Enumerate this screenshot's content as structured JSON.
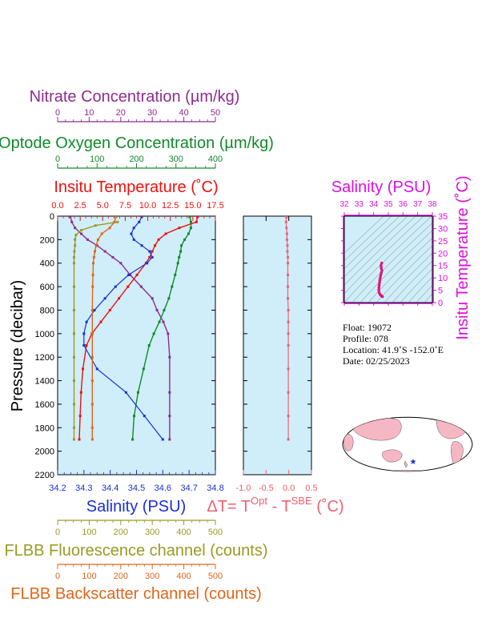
{
  "colors": {
    "nitrate": "#8e2c91",
    "oxygen": "#108a2a",
    "temperature": "#ee1111",
    "salinity": "#1a2fd6",
    "fluorescence": "#9a9a24",
    "backscatter": "#e0661a",
    "delta": "#f06070",
    "ts_axis": "#dd10dd",
    "plot_bg": "#cfeef9"
  },
  "labels": {
    "nitrate": "Nitrate Concentration (µm/kg)",
    "oxygen": "Optode Oxygen Concentration (µm/kg)",
    "temperature": "Insitu Temperature (˚C)",
    "salinity": "Salinity (PSU)",
    "delta_t_main": "ΔT= T",
    "delta_t_sup1": "Opt",
    "delta_t_mid": " - T",
    "delta_t_sup2": "SBE",
    "delta_t_end": " (˚C)",
    "pressure": "Pressure (decibar)",
    "fluorescence": "FLBB Fluorescence channel (counts)",
    "backscatter": "FLBB Backscatter channel (counts)",
    "ts_salinity": "Salinity (PSU)",
    "ts_temperature": "Insitu Temperature (˚C)"
  },
  "float_info": {
    "float": "Float:  19072",
    "profile": "Profile:  078",
    "location": "Location:  41.9˚S  -152.0˚E",
    "date": "Date:  02/25/2023"
  },
  "chart_data": [
    {
      "type": "line",
      "name": "profile",
      "y_axis": {
        "ylim": [
          2200,
          0
        ],
        "ticks": [
          0,
          200,
          400,
          600,
          800,
          1000,
          1200,
          1400,
          1600,
          1800,
          2000,
          2200
        ]
      },
      "axes": {
        "salinity": {
          "range": [
            34.2,
            34.8
          ],
          "ticks": [
            "34.2",
            "34.3",
            "34.4",
            "34.5",
            "34.6",
            "34.7",
            "34.8"
          ]
        },
        "temperature": {
          "range": [
            0,
            17.5
          ],
          "ticks": [
            "0.0",
            "2.5",
            "5.0",
            "7.5",
            "10.0",
            "12.5",
            "15.0",
            "17.5"
          ]
        },
        "oxygen": {
          "range": [
            0,
            400
          ],
          "ticks": [
            "0",
            "100",
            "200",
            "300",
            "400"
          ]
        },
        "nitrate": {
          "range": [
            0,
            50
          ],
          "ticks": [
            "0",
            "10",
            "20",
            "30",
            "40",
            "50"
          ]
        },
        "fluorescence": {
          "range": [
            0,
            500
          ],
          "ticks": [
            "0",
            "100",
            "200",
            "300",
            "400",
            "500"
          ]
        },
        "backscatter": {
          "range": [
            0,
            500
          ],
          "ticks": [
            "0",
            "100",
            "200",
            "300",
            "400",
            "500"
          ]
        }
      },
      "series": [
        {
          "key": "nitrate",
          "axis": "nitrate",
          "markers": true,
          "x": [
            4,
            4.5,
            5.5,
            7.5,
            9.5,
            12.5,
            15,
            17.5,
            20,
            23,
            26.5,
            30,
            31.5,
            33.5,
            35,
            35.5,
            35.5,
            35.5,
            35.5
          ],
          "y": [
            5,
            50,
            100,
            150,
            200,
            250,
            300,
            350,
            400,
            500,
            600,
            700,
            800,
            900,
            1000,
            1200,
            1500,
            1700,
            1900
          ]
        },
        {
          "key": "oxygen",
          "axis": "oxygen",
          "markers": true,
          "x": [
            335,
            338,
            338,
            332,
            322,
            314,
            312,
            308,
            305,
            298,
            290,
            282,
            270,
            258,
            244,
            232,
            218,
            204,
            194,
            190
          ],
          "y": [
            5,
            50,
            100,
            150,
            200,
            250,
            300,
            350,
            400,
            500,
            600,
            700,
            800,
            900,
            1000,
            1100,
            1300,
            1500,
            1700,
            1900
          ]
        },
        {
          "key": "temperature",
          "axis": "temperature",
          "markers": true,
          "x": [
            15.5,
            15.4,
            13.5,
            12,
            11.2,
            10.8,
            10.5,
            10.2,
            9.8,
            8.8,
            7.8,
            6.8,
            5.8,
            4.8,
            3.8,
            3.2,
            2.8,
            2.6,
            2.5,
            2.4
          ],
          "y": [
            5,
            50,
            100,
            150,
            200,
            250,
            300,
            350,
            400,
            500,
            600,
            700,
            800,
            900,
            1000,
            1100,
            1300,
            1500,
            1700,
            1900
          ]
        },
        {
          "key": "salinity",
          "axis": "salinity",
          "markers": true,
          "x": [
            34.52,
            34.51,
            34.49,
            34.48,
            34.49,
            34.52,
            34.55,
            34.56,
            34.54,
            34.47,
            34.42,
            34.38,
            34.34,
            34.31,
            34.3,
            34.3,
            34.35,
            34.46,
            34.53,
            34.6
          ],
          "y": [
            5,
            50,
            100,
            150,
            200,
            250,
            300,
            350,
            400,
            500,
            600,
            700,
            800,
            900,
            1000,
            1100,
            1300,
            1500,
            1700,
            1900
          ]
        },
        {
          "key": "fluorescence",
          "axis": "fluorescence",
          "markers": true,
          "x": [
            190,
            120,
            75,
            58,
            55,
            55,
            53,
            52,
            52,
            52,
            52,
            52,
            52,
            52,
            52,
            52,
            52
          ],
          "y": [
            50,
            80,
            120,
            160,
            200,
            250,
            300,
            350,
            400,
            600,
            800,
            1000,
            1200,
            1400,
            1600,
            1800,
            1900
          ]
        },
        {
          "key": "backscatter",
          "axis": "backscatter",
          "markers": true,
          "x": [
            185,
            180,
            165,
            140,
            128,
            122,
            118,
            115,
            113,
            112,
            111,
            110,
            110,
            110,
            110,
            110,
            110,
            110
          ],
          "y": [
            5,
            50,
            100,
            150,
            200,
            250,
            300,
            350,
            400,
            500,
            600,
            800,
            1000,
            1200,
            1400,
            1600,
            1800,
            1900
          ]
        }
      ]
    },
    {
      "type": "line",
      "name": "delta_t",
      "xlim": [
        -1.0,
        0.5
      ],
      "x_ticks": [
        "-1.0",
        "-0.5",
        "0.0",
        "0.5"
      ],
      "ylim": [
        2200,
        0
      ],
      "series": [
        {
          "key": "delta",
          "markers": true,
          "x": [
            -0.05,
            -0.06,
            -0.05,
            -0.04,
            -0.04,
            -0.03,
            -0.03,
            -0.02,
            -0.02,
            -0.02,
            -0.02,
            -0.02,
            -0.01,
            -0.01,
            -0.01,
            -0.01,
            -0.01,
            -0.01,
            -0.01,
            -0.01
          ],
          "y": [
            10,
            50,
            100,
            150,
            200,
            250,
            300,
            350,
            400,
            500,
            600,
            700,
            800,
            900,
            1000,
            1100,
            1300,
            1500,
            1700,
            1900
          ]
        }
      ]
    },
    {
      "type": "scatter",
      "name": "ts_diagram",
      "xlim": [
        32,
        38
      ],
      "ylim": [
        0,
        35
      ],
      "x_ticks": [
        "32",
        "33",
        "34",
        "35",
        "36",
        "37",
        "38"
      ],
      "y_ticks": [
        "0",
        "5",
        "10",
        "15",
        "20",
        "25",
        "30",
        "35"
      ],
      "points": [
        {
          "x": 34.55,
          "y": 16.0
        },
        {
          "x": 34.5,
          "y": 15.0
        },
        {
          "x": 34.52,
          "y": 14.0
        },
        {
          "x": 34.56,
          "y": 13.0
        },
        {
          "x": 34.52,
          "y": 12.0
        },
        {
          "x": 34.48,
          "y": 11.0
        },
        {
          "x": 34.45,
          "y": 10.0
        },
        {
          "x": 34.42,
          "y": 9.0
        },
        {
          "x": 34.4,
          "y": 8.0
        },
        {
          "x": 34.38,
          "y": 7.0
        },
        {
          "x": 34.36,
          "y": 6.0
        },
        {
          "x": 34.35,
          "y": 5.0
        },
        {
          "x": 34.38,
          "y": 4.0
        },
        {
          "x": 34.45,
          "y": 3.2
        },
        {
          "x": 34.52,
          "y": 2.8
        },
        {
          "x": 34.58,
          "y": 2.5
        },
        {
          "x": 34.6,
          "y": 2.4
        }
      ]
    }
  ]
}
